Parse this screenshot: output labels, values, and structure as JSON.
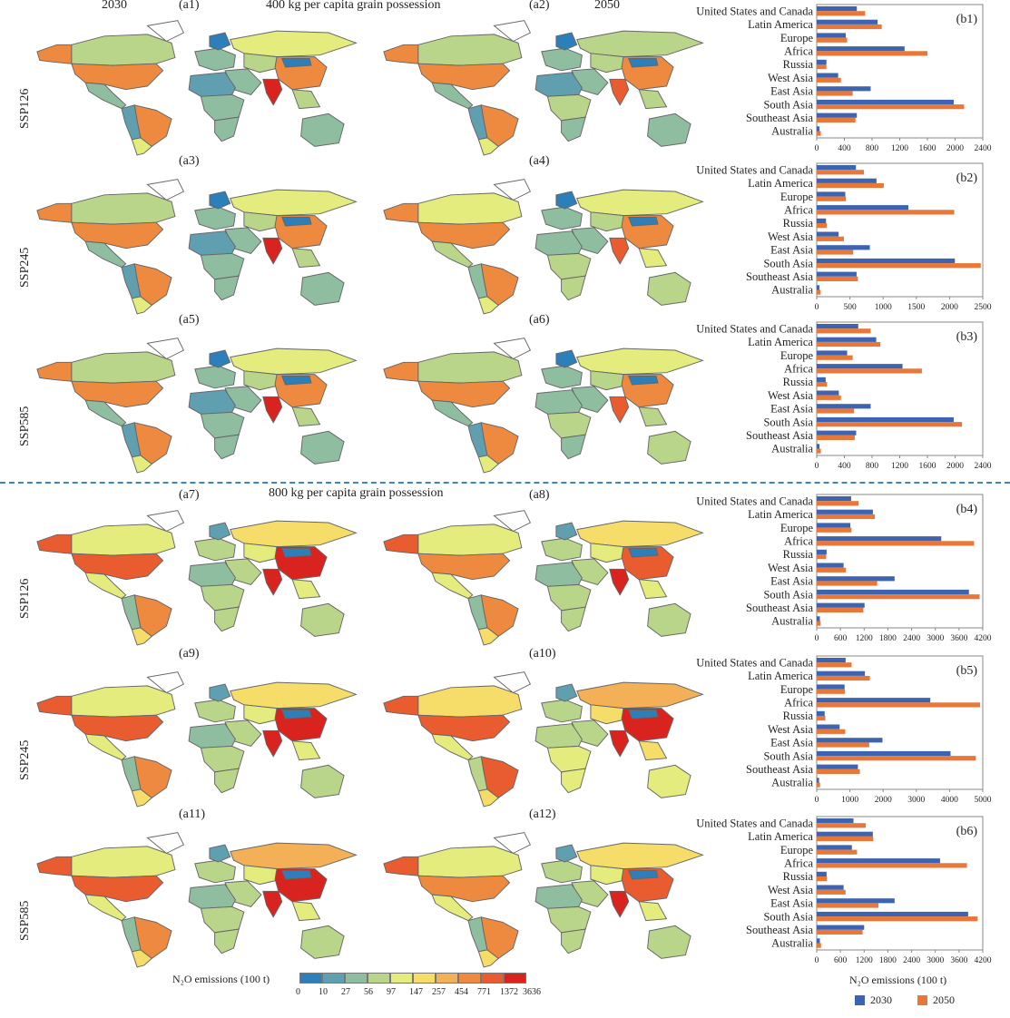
{
  "headers": {
    "year_left": "2030",
    "year_right": "2050",
    "title_400": "400 kg per capita grain possession",
    "title_800": "800 kg per capita grain possession",
    "scenarios": [
      "SSP126",
      "SSP245",
      "SSP585",
      "SSP126",
      "SSP245",
      "SSP585"
    ]
  },
  "map_panels": [
    [
      "(a1)",
      "(a2)"
    ],
    [
      "(a3)",
      "(a4)"
    ],
    [
      "(a5)",
      "(a6)"
    ],
    [
      "(a7)",
      "(a8)"
    ],
    [
      "(a9)",
      "(a10)"
    ],
    [
      "(a11)",
      "(a12)"
    ]
  ],
  "map_levels": {
    "regions": [
      "alaska",
      "canada",
      "usa",
      "mexico",
      "brazil",
      "andes",
      "s_cone",
      "europe",
      "scandinavia",
      "russia",
      "central_asia",
      "middle_east",
      "n_africa",
      "c_africa",
      "s_africa",
      "china",
      "mongolia",
      "india",
      "se_asia",
      "australia"
    ],
    "rows": [
      [
        [
          7,
          3,
          7,
          2,
          7,
          1,
          4,
          2,
          0,
          4,
          3,
          2,
          1,
          2,
          2,
          7,
          0,
          9,
          3,
          2
        ],
        [
          7,
          3,
          7,
          2,
          7,
          1,
          4,
          2,
          0,
          3,
          3,
          2,
          1,
          3,
          2,
          7,
          0,
          8,
          3,
          2
        ]
      ],
      [
        [
          7,
          3,
          7,
          2,
          7,
          1,
          4,
          2,
          0,
          4,
          3,
          2,
          1,
          2,
          2,
          7,
          0,
          9,
          3,
          2
        ],
        [
          7,
          4,
          7,
          3,
          7,
          2,
          4,
          2,
          0,
          4,
          3,
          2,
          2,
          3,
          3,
          7,
          0,
          8,
          4,
          3
        ]
      ],
      [
        [
          7,
          3,
          7,
          2,
          7,
          1,
          4,
          2,
          0,
          4,
          3,
          2,
          1,
          2,
          2,
          7,
          0,
          9,
          3,
          2
        ],
        [
          7,
          3,
          7,
          2,
          7,
          1,
          4,
          2,
          0,
          4,
          3,
          2,
          2,
          3,
          2,
          7,
          0,
          8,
          3,
          3
        ]
      ],
      [
        [
          8,
          4,
          8,
          4,
          7,
          2,
          5,
          3,
          1,
          5,
          4,
          3,
          2,
          3,
          3,
          9,
          0,
          9,
          4,
          3
        ],
        [
          8,
          4,
          7,
          4,
          7,
          2,
          5,
          3,
          1,
          5,
          4,
          3,
          2,
          3,
          3,
          8,
          0,
          9,
          4,
          3
        ]
      ],
      [
        [
          8,
          4,
          8,
          4,
          7,
          2,
          5,
          3,
          1,
          5,
          4,
          3,
          2,
          3,
          3,
          9,
          0,
          9,
          4,
          3
        ],
        [
          8,
          5,
          8,
          4,
          8,
          3,
          5,
          3,
          1,
          6,
          5,
          3,
          3,
          4,
          4,
          9,
          0,
          9,
          5,
          4
        ]
      ],
      [
        [
          8,
          4,
          8,
          4,
          7,
          2,
          5,
          3,
          1,
          6,
          4,
          3,
          2,
          3,
          3,
          9,
          0,
          9,
          4,
          3
        ],
        [
          8,
          4,
          7,
          4,
          7,
          2,
          5,
          3,
          1,
          5,
          4,
          3,
          2,
          3,
          3,
          8,
          0,
          9,
          4,
          3
        ]
      ]
    ]
  },
  "colors": {
    "scale": [
      "#2c7fb8",
      "#5f9fb0",
      "#8fbd9f",
      "#b9d58a",
      "#e3ec7d",
      "#f6dd6a",
      "#f4b057",
      "#ee8a40",
      "#e85c2f",
      "#d8231f"
    ],
    "series_2030": "#3c64b1",
    "series_2050": "#e8773a",
    "border": "#666666"
  },
  "map_legend": {
    "title": "N₂O emissions (100 t)",
    "ticks": [
      "0",
      "10",
      "27",
      "56",
      "97",
      "147",
      "257",
      "454",
      "771",
      "1372",
      "3636"
    ]
  },
  "chart_legend": {
    "xlabel": "N₂O emissions (100 t)",
    "series": [
      "2030",
      "2050"
    ]
  },
  "chart_data": [
    {
      "type": "bar",
      "label": "(b1)",
      "categories": [
        "United States and Canada",
        "Latin America",
        "Europe",
        "Africa",
        "Russia",
        "West Asia",
        "East Asia",
        "South Asia",
        "Southeast Asia",
        "Australia"
      ],
      "series": [
        {
          "name": "2030",
          "values": [
            580,
            880,
            420,
            1270,
            140,
            310,
            780,
            1980,
            580,
            40
          ]
        },
        {
          "name": "2050",
          "values": [
            700,
            940,
            440,
            1600,
            140,
            350,
            520,
            2130,
            560,
            60
          ]
        }
      ],
      "xlim": [
        0,
        2400
      ],
      "ticks": [
        "0",
        "400",
        "800",
        "1200",
        "1600",
        "2000",
        "2400"
      ]
    },
    {
      "type": "bar",
      "label": "(b2)",
      "categories": [
        "United States and Canada",
        "Latin America",
        "Europe",
        "Africa",
        "Russia",
        "West Asia",
        "East Asia",
        "South Asia",
        "Southeast Asia",
        "Australia"
      ],
      "series": [
        {
          "name": "2030",
          "values": [
            590,
            900,
            430,
            1380,
            140,
            330,
            800,
            2080,
            600,
            40
          ]
        },
        {
          "name": "2050",
          "values": [
            710,
            1010,
            440,
            2070,
            150,
            410,
            550,
            2470,
            620,
            60
          ]
        }
      ],
      "xlim": [
        0,
        2500
      ],
      "ticks": [
        "0",
        "500",
        "1000",
        "1500",
        "2000",
        "2500"
      ]
    },
    {
      "type": "bar",
      "label": "(b3)",
      "categories": [
        "United States and Canada",
        "Latin America",
        "Europe",
        "Africa",
        "Russia",
        "West Asia",
        "East Asia",
        "South Asia",
        "Southeast Asia",
        "Australia"
      ],
      "series": [
        {
          "name": "2030",
          "values": [
            600,
            860,
            440,
            1240,
            130,
            320,
            780,
            1980,
            570,
            40
          ]
        },
        {
          "name": "2050",
          "values": [
            780,
            920,
            520,
            1520,
            150,
            350,
            540,
            2100,
            550,
            60
          ]
        }
      ],
      "xlim": [
        0,
        2400
      ],
      "ticks": [
        "0",
        "400",
        "800",
        "1200",
        "1600",
        "2000",
        "2400"
      ]
    },
    {
      "type": "bar",
      "label": "(b4)",
      "categories": [
        "United States and Canada",
        "Latin America",
        "Europe",
        "Africa",
        "Russia",
        "West Asia",
        "East Asia",
        "South Asia",
        "Southeast Asia",
        "Australia"
      ],
      "series": [
        {
          "name": "2030",
          "values": [
            870,
            1420,
            850,
            3150,
            250,
            680,
            1970,
            3850,
            1210,
            80
          ]
        },
        {
          "name": "2050",
          "values": [
            1060,
            1470,
            880,
            3980,
            240,
            740,
            1530,
            4120,
            1180,
            100
          ]
        }
      ],
      "xlim": [
        0,
        4200
      ],
      "ticks": [
        "0",
        "600",
        "1200",
        "1800",
        "2400",
        "3000",
        "3600",
        "4200"
      ]
    },
    {
      "type": "bar",
      "label": "(b5)",
      "categories": [
        "United States and Canada",
        "Latin America",
        "Europe",
        "Africa",
        "Russia",
        "West Asia",
        "East Asia",
        "South Asia",
        "Southeast Asia",
        "Australia"
      ],
      "series": [
        {
          "name": "2030",
          "values": [
            870,
            1450,
            840,
            3420,
            240,
            690,
            1980,
            4030,
            1240,
            70
          ]
        },
        {
          "name": "2050",
          "values": [
            1050,
            1600,
            850,
            4920,
            260,
            860,
            1580,
            4790,
            1300,
            100
          ]
        }
      ],
      "xlim": [
        0,
        5000
      ],
      "ticks": [
        "0",
        "1000",
        "2000",
        "3000",
        "4000",
        "5000"
      ]
    },
    {
      "type": "bar",
      "label": "(b6)",
      "categories": [
        "United States and Canada",
        "Latin America",
        "Europe",
        "Africa",
        "Russia",
        "West Asia",
        "East Asia",
        "South Asia",
        "Southeast Asia",
        "Australia"
      ],
      "series": [
        {
          "name": "2030",
          "values": [
            930,
            1420,
            890,
            3120,
            250,
            680,
            1970,
            3830,
            1200,
            80
          ]
        },
        {
          "name": "2050",
          "values": [
            1240,
            1430,
            1020,
            3800,
            260,
            730,
            1560,
            4070,
            1160,
            110
          ]
        }
      ],
      "xlim": [
        0,
        4200
      ],
      "ticks": [
        "0",
        "600",
        "1200",
        "1800",
        "2400",
        "3000",
        "3600",
        "4200"
      ],
      "xlabel": "N₂O emissions (100 t)"
    }
  ]
}
